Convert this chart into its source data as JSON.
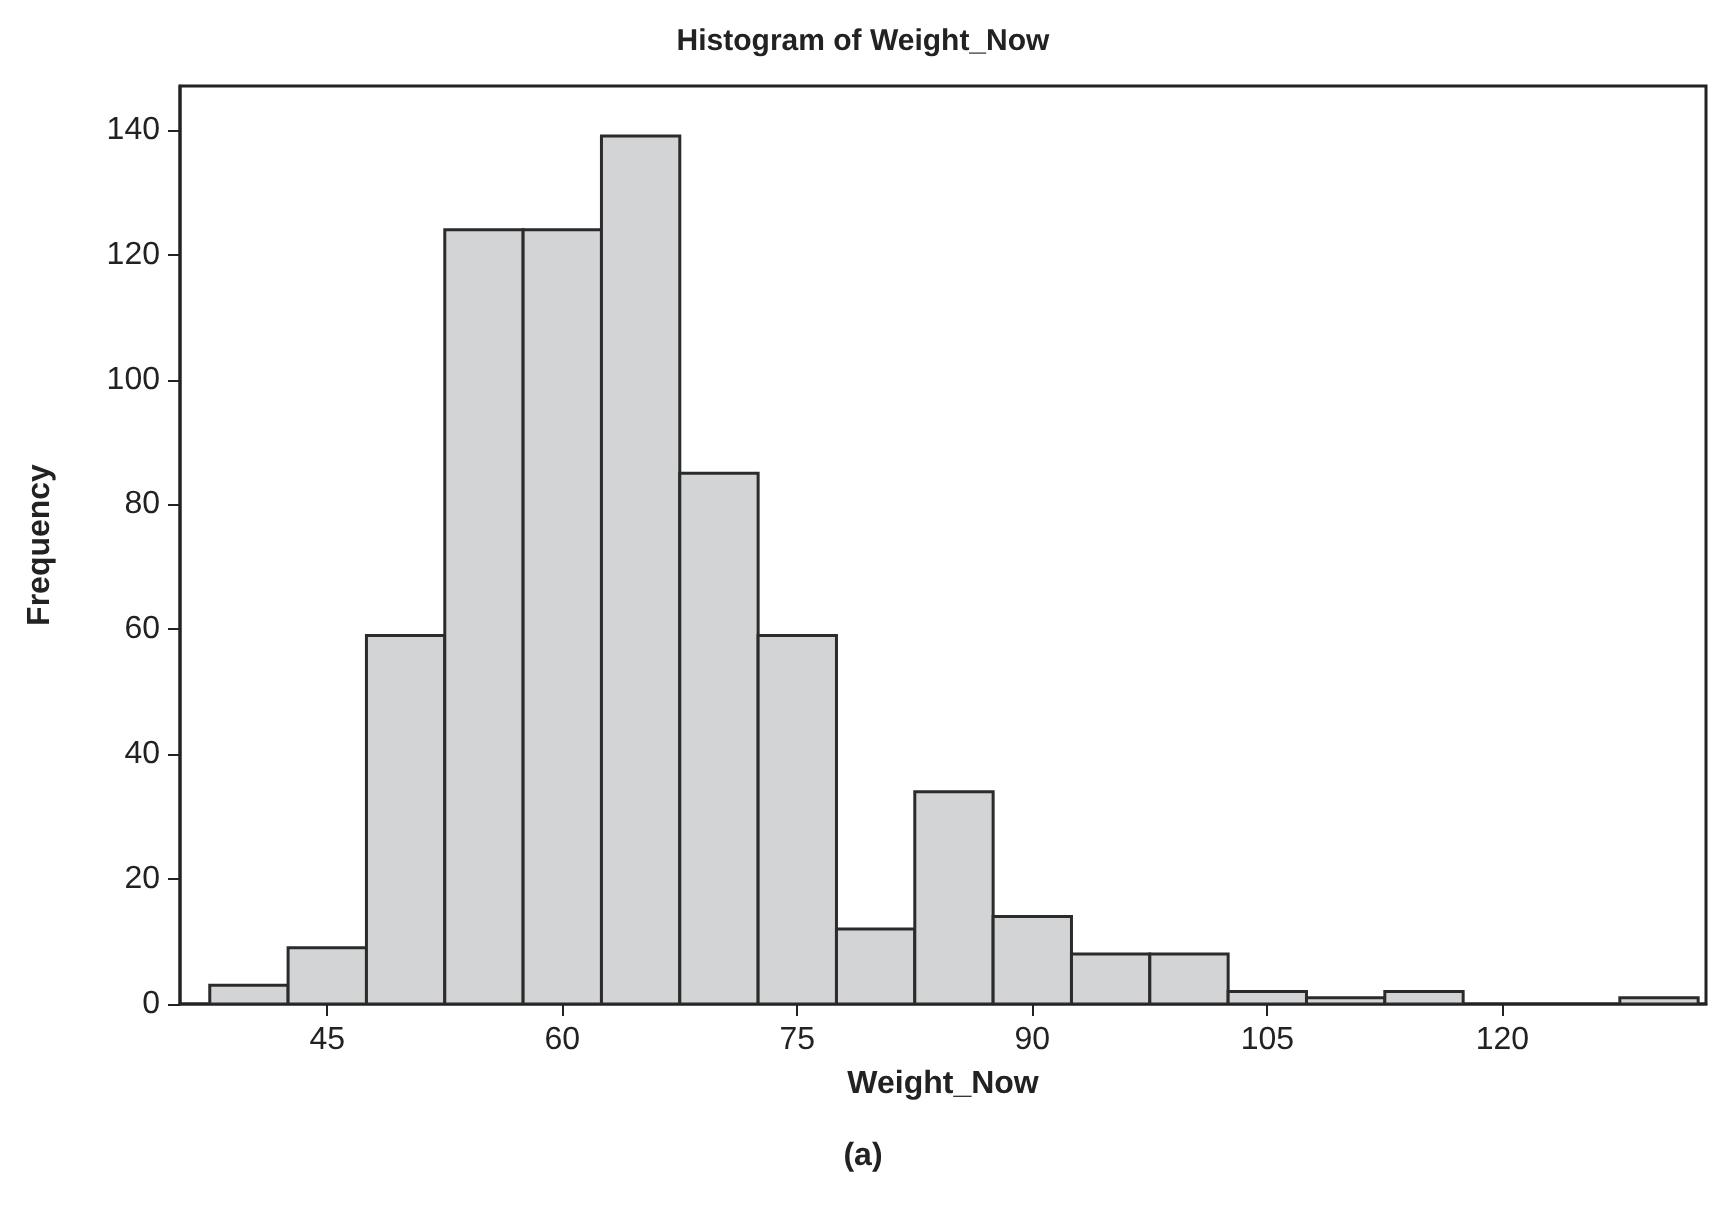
{
  "chart_data": {
    "type": "histogram",
    "title": "Histogram of Weight_Now",
    "xlabel": "Weight_Now",
    "ylabel": "Frequency",
    "annotations": [
      "(a)"
    ],
    "bins": [
      37.5,
      42.5,
      47.5,
      52.5,
      57.5,
      62.5,
      67.5,
      72.5,
      77.5,
      82.5,
      87.5,
      92.5,
      97.5,
      102.5,
      107.5,
      112.5,
      117.5,
      122.5,
      127.5,
      132.5
    ],
    "values": [
      3,
      9,
      59,
      124,
      124,
      139,
      85,
      59,
      12,
      34,
      14,
      8,
      8,
      2,
      1,
      2,
      0,
      0,
      1
    ],
    "color": "#d3d4d6",
    "xlim": [
      35.6,
      133
    ],
    "xticks": [
      45,
      60,
      75,
      90,
      105,
      120
    ],
    "ylim": [
      0,
      147
    ],
    "yticks": [
      0,
      20,
      40,
      60,
      80,
      100,
      120,
      140
    ],
    "grid": false,
    "legend": false
  }
}
